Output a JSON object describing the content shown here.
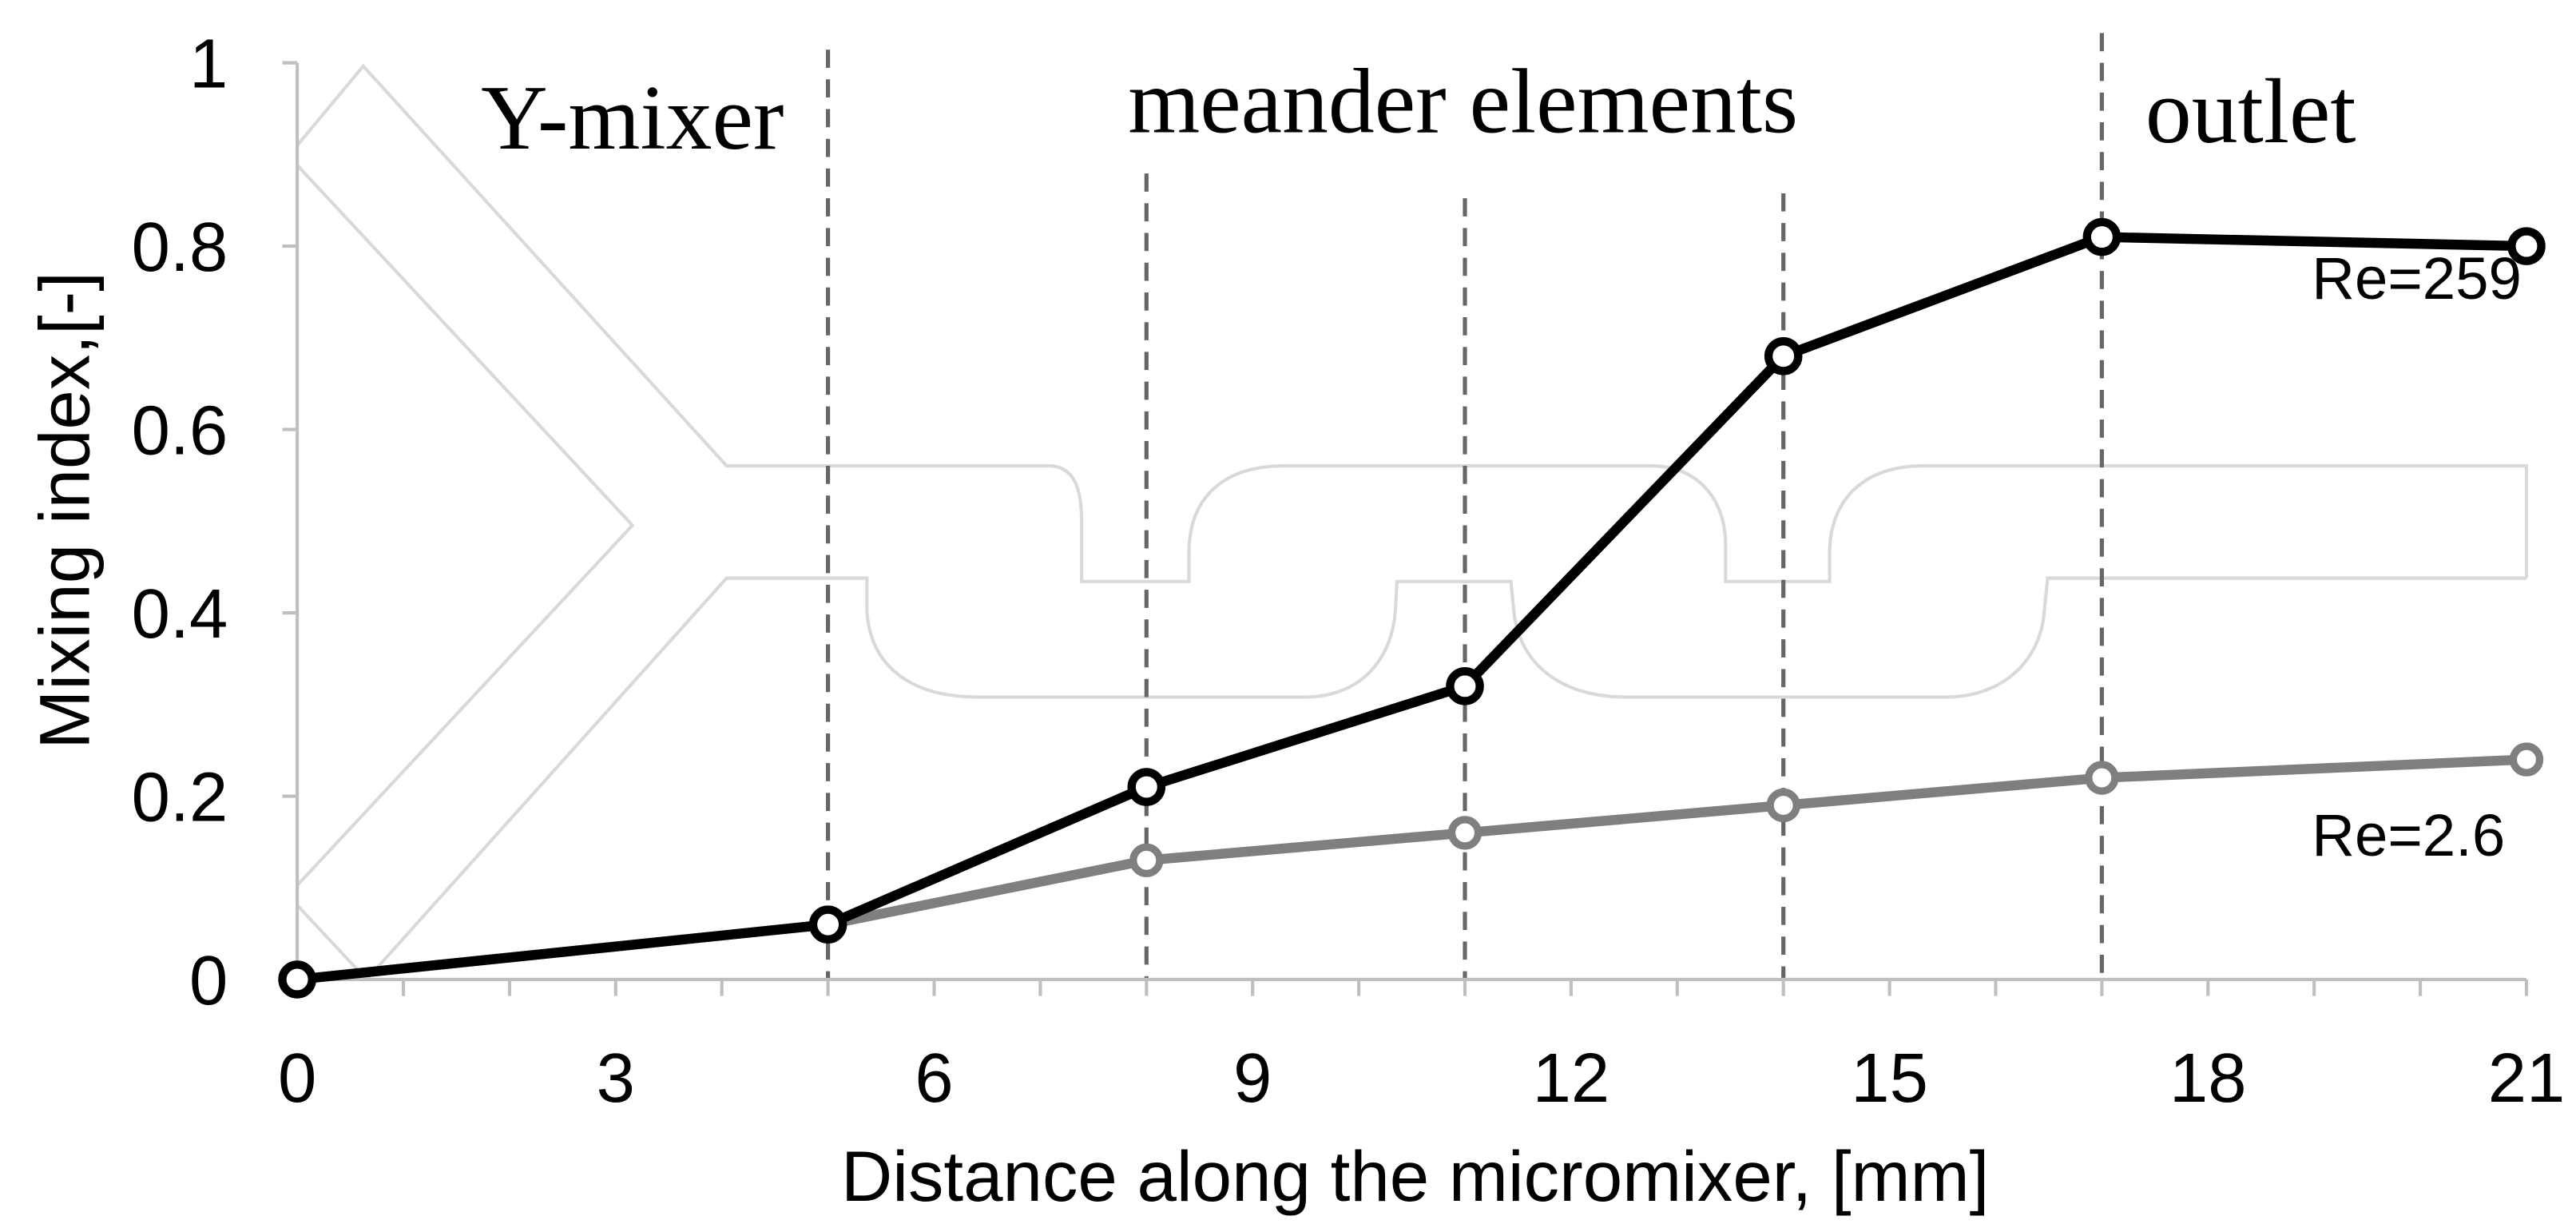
{
  "chart_data": {
    "type": "line",
    "xlabel": "Distance along the micromixer, [mm]",
    "ylabel": "Mixing index,[-]",
    "xlim": [
      0,
      21
    ],
    "ylim": [
      0,
      1
    ],
    "x_ticks": [
      "0",
      "3",
      "6",
      "9",
      "12",
      "15",
      "18",
      "21"
    ],
    "y_ticks": [
      "0",
      "0.2",
      "0.4",
      "0.6",
      "0.8",
      "1"
    ],
    "grid": false,
    "series": [
      {
        "name": "Re=259",
        "color": "#000000",
        "x": [
          0,
          5,
          8,
          11,
          14,
          17,
          21
        ],
        "y": [
          0,
          0.06,
          0.21,
          0.32,
          0.68,
          0.81,
          0.8
        ]
      },
      {
        "name": "Re=2.6",
        "color": "#7f7f7f",
        "x": [
          0,
          5,
          8,
          11,
          14,
          17,
          21
        ],
        "y": [
          0,
          0.06,
          0.13,
          0.16,
          0.19,
          0.22,
          0.24
        ]
      }
    ],
    "section_boundaries": [
      5,
      8,
      11,
      14,
      17
    ],
    "section_labels": [
      "Y-mixer",
      "meander elements",
      "outlet"
    ],
    "colors": {
      "axis": "#bfbfbf",
      "boundary": "#666666",
      "schematic": "#d9d9d9"
    }
  }
}
